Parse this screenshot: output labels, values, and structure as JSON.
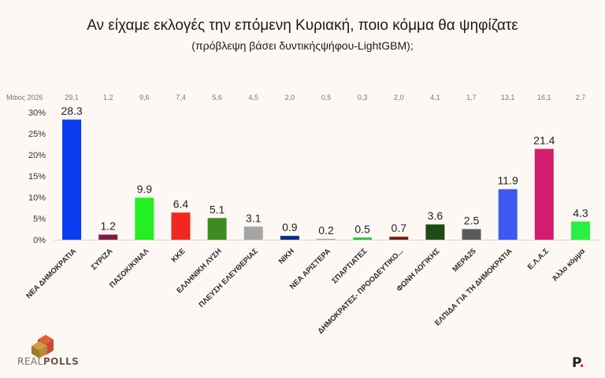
{
  "header": {
    "title": "Αν είχαμε εκλογές την επόμενη Κυριακή, ποιο κόμμα θα ψηφίζατε",
    "subtitle": "(πρόβλεψη βάσει δυντικήςψήφου-LightGBM);"
  },
  "logo": {
    "text_light": "REAL",
    "text_bold": "POLLS"
  },
  "brand": {
    "letter": "P",
    "dot": "."
  },
  "chart_data": {
    "type": "bar",
    "categories": [
      "ΝΕΑ ΔΗΜΟΚΡΑΤΙΑ",
      "ΣΥΡΙΖΑ",
      "ΠΑΣΟΚ/ΚΙΝΑΛ",
      "ΚΚΕ",
      "ΕΛΛΗΝΙΚΗ ΛΥΣΗ",
      "ΠΛΕΥΣΗ ΕΛΕΥΘΕΡΙΑΣ",
      "ΝΙΚΗ",
      "ΝΕΑ ΑΡΙΣΤΕΡΑ",
      "ΣΠΑΡΤΙΑΤΕΣ",
      "ΔΗΜΟΚΡΑΤΕΣ- ΠΡΟΟΔΕΥΤΙΚΟ...",
      "ΦΩΝΗ ΛΟΓΙΚΗΣ",
      "ΜΕΡΑ25",
      "ΕΛΠΙΔΑ ΓΙΑ ΤΗ ΔΗΜΟΚΡΑΤΙΑ",
      "Ε.Λ.Α.Σ",
      "Άλλο κόμμα"
    ],
    "values": [
      28.3,
      1.2,
      9.9,
      6.4,
      5.1,
      3.1,
      0.9,
      0.2,
      0.5,
      0.7,
      3.6,
      2.5,
      11.9,
      21.4,
      4.3
    ],
    "value_labels": [
      "28.3",
      "1.2",
      "9.9",
      "6.4",
      "5.1",
      "3.1",
      "0.9",
      "0.2",
      "0.5",
      "0.7",
      "3.6",
      "2.5",
      "11.9",
      "21.4",
      "4.3"
    ],
    "colors": [
      "#0a3cf0",
      "#7a1e48",
      "#22f022",
      "#f0281e",
      "#3c8c1e",
      "#a5a5a5",
      "#0a2a8c",
      "#a5a5a5",
      "#22c832",
      "#7a1e14",
      "#1e4a14",
      "#5a5a5a",
      "#3c5af0",
      "#d21e6e",
      "#2af046"
    ],
    "comparison_row": {
      "label": "Μάιος 2026",
      "values": [
        "29,1",
        "1,2",
        "9,6",
        "7,4",
        "5,6",
        "4,5",
        "2,0",
        "0,5",
        "0,3",
        "2,0",
        "4,1",
        "1,7",
        "13,1",
        "16,1",
        "2,7"
      ]
    },
    "y_ticks": [
      "30%",
      "25%",
      "20%",
      "15%",
      "10%",
      "5%",
      "0%"
    ],
    "ylim": [
      0,
      30
    ],
    "grid": false,
    "xlabel": "",
    "ylabel": ""
  }
}
